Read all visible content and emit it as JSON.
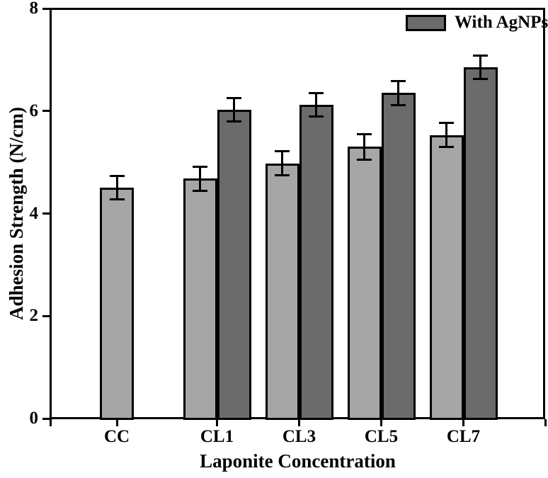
{
  "chart_data": {
    "type": "bar",
    "title": "",
    "xlabel": "Laponite Concentration",
    "ylabel": "Adhesion Strength (N/cm)",
    "ylim": [
      0,
      8
    ],
    "yticks": [
      0,
      2,
      4,
      6,
      8
    ],
    "grid": false,
    "categories": [
      "CC",
      "CL1",
      "CL3",
      "CL5",
      "CL7"
    ],
    "series": [
      {
        "name": "",
        "color": "#a6a6a6",
        "values": [
          4.5,
          4.68,
          4.98,
          5.3,
          5.53
        ],
        "errors": [
          0.22,
          0.23,
          0.23,
          0.24,
          0.23
        ]
      },
      {
        "name": "With AgNPs",
        "color": "#6b6b6b",
        "values": [
          null,
          6.02,
          6.12,
          6.35,
          6.85
        ],
        "errors": [
          null,
          0.22,
          0.22,
          0.23,
          0.22
        ]
      }
    ],
    "legend": {
      "position": "top-right",
      "entries": [
        {
          "label": "With AgNPs",
          "color": "#6b6b6b"
        }
      ]
    },
    "colors": {
      "axis": "#000000",
      "bar_border": "#000000",
      "background": "#ffffff"
    }
  }
}
